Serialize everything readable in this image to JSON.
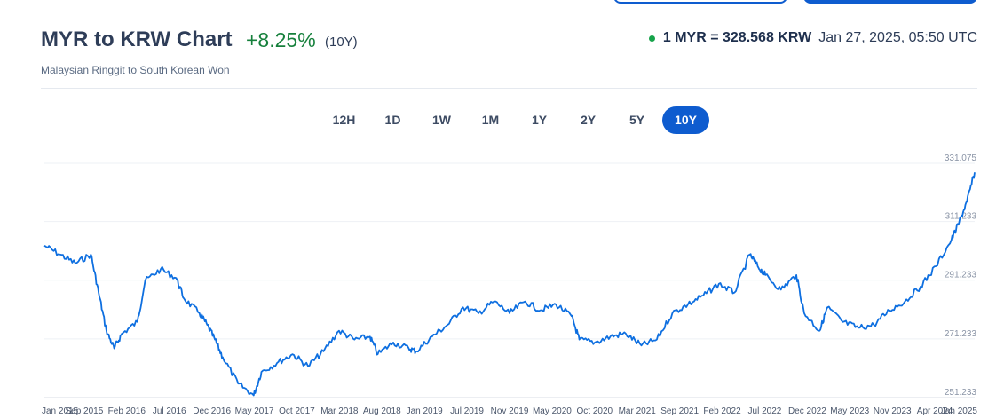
{
  "header": {
    "title": "MYR to KRW Chart",
    "change": "+8.25%",
    "period": "(10Y)",
    "subtitle": "Malaysian Ringgit to South Korean Won",
    "rate": "1 MYR = 328.568 KRW",
    "timestamp": "Jan 27, 2025, 05:50 UTC"
  },
  "tabs": [
    {
      "label": "12H",
      "active": false
    },
    {
      "label": "1D",
      "active": false
    },
    {
      "label": "1W",
      "active": false
    },
    {
      "label": "1M",
      "active": false
    },
    {
      "label": "1Y",
      "active": false
    },
    {
      "label": "2Y",
      "active": false
    },
    {
      "label": "5Y",
      "active": false
    },
    {
      "label": "10Y",
      "active": true
    }
  ],
  "colors": {
    "line": "#0e6fe0",
    "accent": "#0e5ccf",
    "positive": "#16803c",
    "live": "#16a34a"
  },
  "chart_data": {
    "type": "line",
    "x_tick_labels": [
      "Jan 2015",
      "Sep 2015",
      "Feb 2016",
      "Jul 2016",
      "Dec 2016",
      "May 2017",
      "Oct 2017",
      "Mar 2018",
      "Aug 2018",
      "Jan 2019",
      "Jul 2019",
      "Nov 2019",
      "May 2020",
      "Oct 2020",
      "Mar 2021",
      "Sep 2021",
      "Feb 2022",
      "Jul 2022",
      "Dec 2022",
      "May 2023",
      "Nov 2023",
      "Apr 2024",
      "Jan 2025"
    ],
    "y_tick_labels": [
      "331.075",
      "311.233",
      "291.233",
      "271.233",
      "251.233"
    ],
    "y_ticks": [
      331.075,
      311.233,
      291.233,
      271.233,
      251.233
    ],
    "ylim": [
      251.233,
      331.075
    ],
    "xlim": [
      "2015-01",
      "2025-01"
    ],
    "grid": true,
    "series": [
      {
        "x": [
          "2015-01",
          "2015-03",
          "2015-05",
          "2015-07",
          "2015-08",
          "2015-09",
          "2015-10",
          "2015-11",
          "2016-01",
          "2016-02",
          "2016-04",
          "2016-06",
          "2016-07",
          "2016-09",
          "2016-10",
          "2016-11",
          "2016-12",
          "2017-02",
          "2017-04",
          "2017-05",
          "2017-07",
          "2017-09",
          "2017-11",
          "2018-01",
          "2018-03",
          "2018-05",
          "2018-07",
          "2018-08",
          "2018-10",
          "2018-12",
          "2019-01",
          "2019-03",
          "2019-05",
          "2019-07",
          "2019-09",
          "2019-11",
          "2020-01",
          "2020-03",
          "2020-05",
          "2020-07",
          "2020-09",
          "2020-10",
          "2020-12",
          "2021-02",
          "2021-04",
          "2021-06",
          "2021-08",
          "2021-10",
          "2021-12",
          "2022-02",
          "2022-04",
          "2022-06",
          "2022-08",
          "2022-09",
          "2022-10",
          "2022-12",
          "2023-02",
          "2023-03",
          "2023-05",
          "2023-06",
          "2023-08",
          "2023-10",
          "2023-12",
          "2024-02",
          "2024-04",
          "2024-06",
          "2024-08",
          "2024-10",
          "2024-11",
          "2024-12",
          "2025-01"
        ],
        "y": [
          303,
          300,
          297,
          300,
          287,
          274,
          268,
          273,
          277,
          291,
          295,
          292,
          285,
          280,
          276,
          271,
          265,
          256,
          252,
          260,
          263,
          266,
          262,
          267,
          274,
          271,
          272,
          266,
          270,
          268,
          267,
          272,
          276,
          282,
          280,
          284,
          280,
          284,
          281,
          283,
          279,
          271,
          270,
          272,
          273,
          269,
          271,
          280,
          283,
          286,
          290,
          287,
          300,
          296,
          293,
          288,
          293,
          280,
          274,
          282,
          277,
          275,
          276,
          281,
          284,
          289,
          296,
          305,
          311,
          318,
          328
        ]
      }
    ]
  }
}
